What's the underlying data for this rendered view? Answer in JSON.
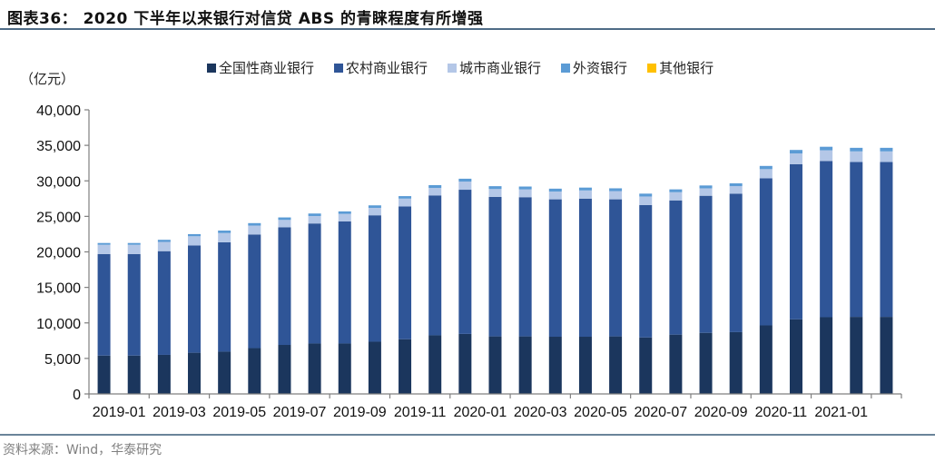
{
  "header": {
    "title": "图表36： 2020 下半年以来银行对信贷 ABS 的青睐程度有所增强"
  },
  "footer": {
    "source": "资料来源：Wind，华泰研究"
  },
  "chart_data": {
    "type": "bar",
    "stacked": true,
    "title": "图表36： 2020 下半年以来银行对信贷 ABS 的青睐程度有所增强",
    "xlabel": "",
    "ylabel": "（亿元）",
    "ylim": [
      0,
      40000
    ],
    "yticks": [
      0,
      5000,
      10000,
      15000,
      20000,
      25000,
      30000,
      35000,
      40000
    ],
    "ytick_labels": [
      "0",
      "5,000",
      "10,000",
      "15,000",
      "20,000",
      "25,000",
      "30,000",
      "35,000",
      "40,000"
    ],
    "xtick_labels": [
      "2019-01",
      "2019-03",
      "2019-05",
      "2019-07",
      "2019-09",
      "2019-11",
      "2020-01",
      "2020-03",
      "2020-05",
      "2020-07",
      "2020-09",
      "2020-11",
      "2021-01"
    ],
    "grid": false,
    "legend_position": "top",
    "categories": [
      "2019-01",
      "2019-02",
      "2019-03",
      "2019-04",
      "2019-05",
      "2019-06",
      "2019-07",
      "2019-08",
      "2019-09",
      "2019-10",
      "2019-11",
      "2019-12",
      "2020-01",
      "2020-02",
      "2020-03",
      "2020-04",
      "2020-05",
      "2020-06",
      "2020-07",
      "2020-08",
      "2020-09",
      "2020-10",
      "2020-11",
      "2020-12",
      "2021-01",
      "2021-02",
      "2021-03"
    ],
    "series": [
      {
        "name": "全国性商业银行",
        "color": "#1b365d",
        "values": [
          5400,
          5400,
          5500,
          5800,
          5950,
          6450,
          6900,
          7100,
          7100,
          7350,
          7700,
          8250,
          8450,
          8100,
          8100,
          8050,
          8050,
          8100,
          7950,
          8350,
          8600,
          8700,
          9650,
          10500,
          10800,
          10850,
          10850
        ]
      },
      {
        "name": "农村商业银行",
        "color": "#2f5597",
        "values": [
          14300,
          14300,
          14600,
          15100,
          15400,
          16000,
          16550,
          16900,
          17200,
          17800,
          18700,
          19700,
          20300,
          19650,
          19600,
          19350,
          19450,
          19300,
          18650,
          18900,
          19300,
          19500,
          20700,
          21850,
          22000,
          21800,
          21800
        ]
      },
      {
        "name": "城市商业银行",
        "color": "#b4c7e7",
        "values": [
          1300,
          1300,
          1300,
          1300,
          1300,
          1250,
          1050,
          1050,
          1050,
          1050,
          1100,
          1050,
          1150,
          1100,
          1100,
          1100,
          1150,
          1150,
          1200,
          1150,
          1050,
          1050,
          1300,
          1500,
          1500,
          1500,
          1500
        ]
      },
      {
        "name": "外资银行",
        "color": "#5b9bd5",
        "values": [
          250,
          250,
          300,
          300,
          350,
          350,
          350,
          350,
          350,
          350,
          350,
          400,
          400,
          400,
          400,
          400,
          400,
          400,
          400,
          400,
          400,
          400,
          450,
          500,
          500,
          500,
          500
        ]
      },
      {
        "name": "其他银行",
        "color": "#ffc000",
        "values": [
          0,
          0,
          0,
          0,
          0,
          0,
          0,
          0,
          0,
          0,
          0,
          0,
          0,
          0,
          0,
          0,
          0,
          0,
          0,
          0,
          0,
          0,
          0,
          0,
          0,
          0,
          0
        ]
      }
    ]
  },
  "legend": {
    "items": [
      {
        "label": "全国性商业银行",
        "color": "#1b365d"
      },
      {
        "label": "农村商业银行",
        "color": "#2f5597"
      },
      {
        "label": "城市商业银行",
        "color": "#b4c7e7"
      },
      {
        "label": "外资银行",
        "color": "#5b9bd5"
      },
      {
        "label": "其他银行",
        "color": "#ffc000"
      }
    ]
  },
  "axis": {
    "unit_label": "（亿元）"
  }
}
